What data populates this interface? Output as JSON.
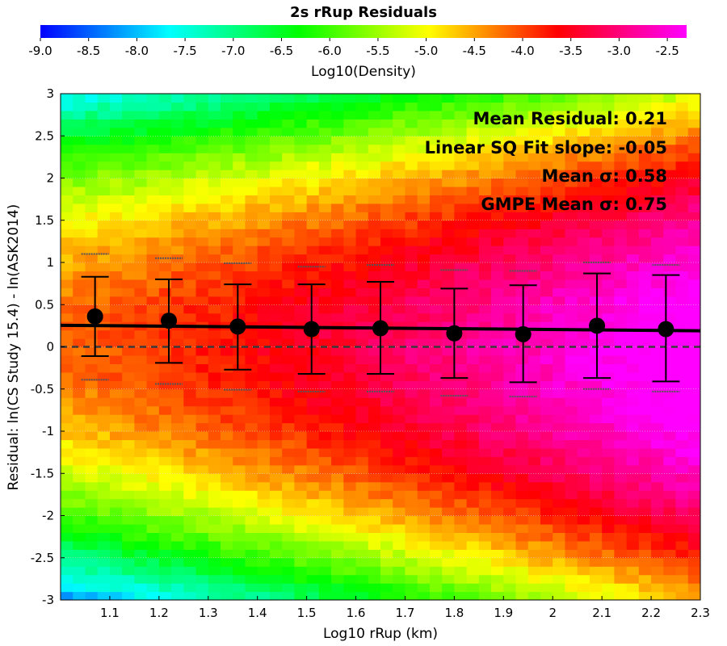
{
  "chart_data": {
    "type": "heatmap",
    "title": "2s rRup Residuals",
    "xlabel": "Log10 rRup (km)",
    "ylabel": "Residual: ln(CS Study 15.4) - ln(ASK2014)",
    "xlim": [
      1.0,
      2.3
    ],
    "ylim": [
      -3,
      3
    ],
    "x_ticks": [
      "1.1",
      "1.2",
      "1.3",
      "1.4",
      "1.5",
      "1.6",
      "1.7",
      "1.8",
      "1.9",
      "2",
      "2.1",
      "2.2",
      "2.3"
    ],
    "y_ticks": [
      "-3",
      "-2.5",
      "-2",
      "-1.5",
      "-1",
      "-0.5",
      "0",
      "0.5",
      "1",
      "1.5",
      "2",
      "2.5",
      "3"
    ],
    "grid": true,
    "colorbar": {
      "label": "Log10(Density)",
      "range": [
        -9.0,
        -2.3
      ],
      "ticks": [
        "-9.0",
        "-8.5",
        "-8.0",
        "-7.5",
        "-7.0",
        "-6.5",
        "-6.0",
        "-5.5",
        "-5.0",
        "-4.5",
        "-4.0",
        "-3.5",
        "-3.0",
        "-2.5"
      ],
      "colors": [
        "#0000ff",
        "#00ffff",
        "#00ff00",
        "#ffff00",
        "#ff0000",
        "#ff00ff"
      ]
    },
    "binned_means": {
      "x": [
        1.07,
        1.22,
        1.36,
        1.51,
        1.65,
        1.8,
        1.94,
        2.09,
        2.23
      ],
      "mean": [
        0.36,
        0.31,
        0.24,
        0.21,
        0.22,
        0.16,
        0.15,
        0.25,
        0.21
      ],
      "upper": [
        0.83,
        0.8,
        0.74,
        0.74,
        0.77,
        0.69,
        0.73,
        0.87,
        0.85
      ],
      "lower": [
        -0.11,
        -0.19,
        -0.27,
        -0.32,
        -0.32,
        -0.37,
        -0.42,
        -0.37,
        -0.41
      ],
      "gmpe_upper": [
        1.1,
        1.05,
        0.99,
        0.95,
        0.97,
        0.91,
        0.9,
        1.0,
        0.97
      ],
      "gmpe_lower": [
        -0.39,
        -0.44,
        -0.51,
        -0.53,
        -0.53,
        -0.58,
        -0.59,
        -0.5,
        -0.53
      ]
    },
    "fit_line": {
      "x": [
        1.0,
        2.3
      ],
      "y": [
        0.255,
        0.19
      ]
    },
    "reference_line_y": 0
  },
  "annotations": [
    "Mean Residual: 0.21",
    "Linear SQ Fit slope: -0.05",
    "Mean σ: 0.58",
    "GMPE Mean σ: 0.75"
  ]
}
